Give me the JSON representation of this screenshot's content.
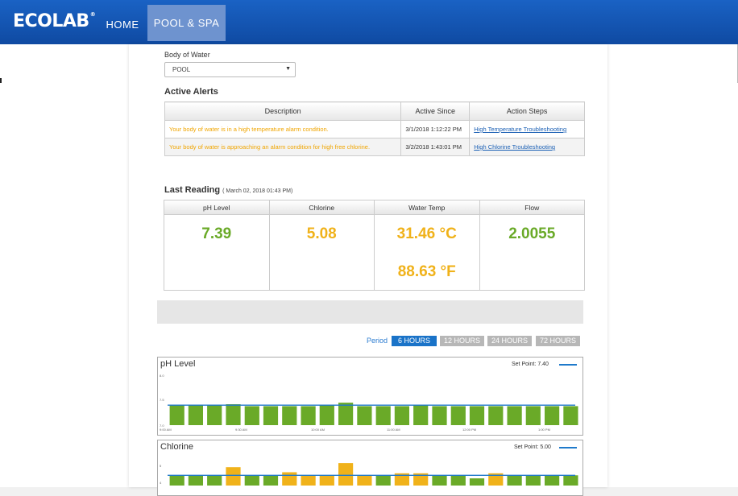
{
  "header": {
    "logo": "ECOLAB",
    "logo_mark": "®",
    "nav": [
      {
        "label": "HOME"
      },
      {
        "label": "POOL & SPA"
      }
    ]
  },
  "body_of_water": {
    "label": "Body of Water",
    "selected": "POOL"
  },
  "active_alerts": {
    "title": "Active Alerts",
    "columns": [
      "Description",
      "Active Since",
      "Action Steps"
    ],
    "rows": [
      {
        "description": "Your body of water is in a high temperature alarm condition.",
        "since": "3/1/2018 1:12:22 PM",
        "action": "High Temperature Troubleshooting"
      },
      {
        "description": "Your body of water is approaching an alarm condition for high free chlorine.",
        "since": "3/2/2018 1:43:01 PM",
        "action": "High Chlorine Troubleshooting"
      }
    ]
  },
  "last_reading": {
    "title": "Last Reading",
    "timestamp": "( March 02, 2018 01:43 PM)",
    "columns": [
      {
        "label": "pH Level",
        "value": "7.39",
        "color": "#6aaa28"
      },
      {
        "label": "Chlorine",
        "value": "5.08",
        "color": "#f0b21a"
      },
      {
        "label": "Water Temp",
        "value": "31.46 °C",
        "value2": "88.63 °F",
        "color": "#f0b21a"
      },
      {
        "label": "Flow",
        "value": "2.0055",
        "color": "#6aaa28"
      }
    ]
  },
  "period": {
    "label": "Period",
    "options": [
      {
        "label": "6 HOURS",
        "active": true
      },
      {
        "label": "12 HOURS",
        "active": false
      },
      {
        "label": "24 HOURS",
        "active": false
      },
      {
        "label": "72 HOURS",
        "active": false
      }
    ]
  },
  "colors": {
    "ok": "#6aaa28",
    "warn": "#f0b21a",
    "setpoint": "#1f7acb",
    "active_button": "#1a73c8",
    "inactive_button": "#b7b7b7"
  },
  "chart_data": [
    {
      "type": "bar",
      "title": "pH Level",
      "setpoint_label": "Set Point:",
      "setpoint_value_text": "7.40",
      "setpoint": 7.4,
      "ylim": [
        7.0,
        8.0
      ],
      "y_ticks": [
        "8.0",
        "7.5",
        "7.0"
      ],
      "x_ticks": [
        "9:00 AM",
        "9:30 AM",
        "10:00 AM",
        "11:00 AM",
        "12:00 PM",
        "1:00 PM"
      ],
      "values": [
        7.4,
        7.4,
        7.4,
        7.42,
        7.38,
        7.38,
        7.38,
        7.38,
        7.4,
        7.45,
        7.38,
        7.38,
        7.38,
        7.41,
        7.38,
        7.38,
        7.38,
        7.38,
        7.38,
        7.38,
        7.38,
        7.38
      ],
      "statuses": [
        "ok",
        "ok",
        "ok",
        "ok",
        "ok",
        "ok",
        "ok",
        "ok",
        "ok",
        "ok",
        "ok",
        "ok",
        "ok",
        "ok",
        "ok",
        "ok",
        "ok",
        "ok",
        "ok",
        "ok",
        "ok",
        "ok"
      ]
    },
    {
      "type": "bar",
      "title": "Chlorine",
      "setpoint_label": "Set Point:",
      "setpoint_value_text": "5.00",
      "setpoint": 5.0,
      "ylim": [
        4.0,
        7.0
      ],
      "y_ticks": [
        "5",
        "4"
      ],
      "x_ticks": [],
      "values": [
        5.0,
        5.0,
        5.0,
        5.8,
        5.0,
        5.0,
        5.3,
        5.0,
        5.0,
        6.2,
        5.0,
        5.0,
        5.2,
        5.2,
        5.0,
        5.0,
        4.7,
        5.2,
        5.0,
        5.0,
        5.0,
        5.0
      ],
      "statuses": [
        "ok",
        "ok",
        "ok",
        "warn",
        "ok",
        "ok",
        "warn",
        "warn",
        "warn",
        "warn",
        "warn",
        "ok",
        "warn",
        "warn",
        "ok",
        "ok",
        "ok",
        "warn",
        "ok",
        "ok",
        "ok",
        "ok"
      ]
    }
  ]
}
